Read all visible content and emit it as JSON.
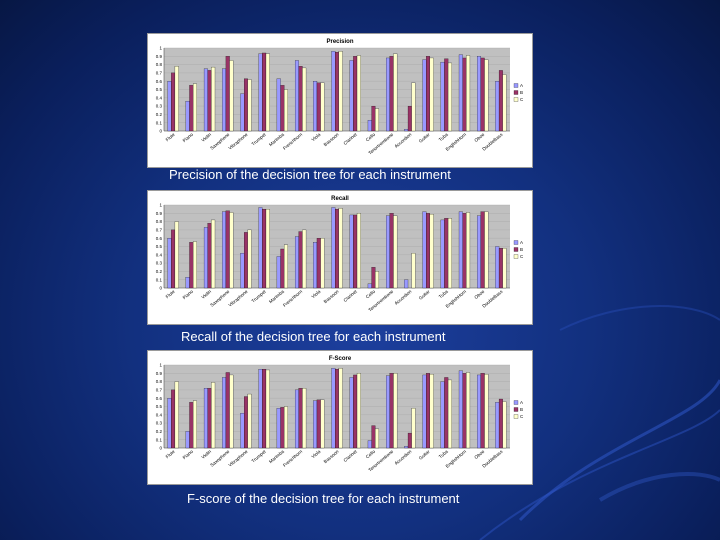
{
  "colors": {
    "A": "#9999ff",
    "B": "#993366",
    "C": "#ffffcc"
  },
  "captions": [
    "Precision of the decision tree for each instrument",
    "Recall of the decision tree for each instrument",
    "F-score of the decision tree for each instrument"
  ],
  "chart_data": [
    {
      "type": "bar",
      "title": "Precision",
      "categories": [
        "Flute",
        "Piano",
        "Violin",
        "Saxophone",
        "Vibraphone",
        "Trumpet",
        "Marimba",
        "Frenchhorn",
        "Viola",
        "Bassoon",
        "Clarinet",
        "Cello",
        "Tenortrombone",
        "Accordion",
        "Guitar",
        "Tuba",
        "EnglishHorn",
        "Oboe",
        "DoubleBass"
      ],
      "series": [
        {
          "name": "A",
          "values": [
            0.6,
            0.36,
            0.75,
            0.75,
            0.45,
            0.93,
            0.63,
            0.85,
            0.6,
            0.96,
            0.85,
            0.13,
            0.88,
            0.02,
            0.86,
            0.83,
            0.92,
            0.9,
            0.6
          ]
        },
        {
          "name": "B",
          "values": [
            0.7,
            0.55,
            0.73,
            0.9,
            0.63,
            0.94,
            0.55,
            0.78,
            0.58,
            0.95,
            0.9,
            0.3,
            0.9,
            0.3,
            0.9,
            0.87,
            0.88,
            0.88,
            0.73
          ]
        },
        {
          "name": "C",
          "values": [
            0.78,
            0.57,
            0.77,
            0.85,
            0.62,
            0.93,
            0.5,
            0.76,
            0.58,
            0.96,
            0.91,
            0.27,
            0.93,
            0.58,
            0.88,
            0.82,
            0.91,
            0.86,
            0.68
          ]
        }
      ],
      "yticks": [
        "0",
        "0.1",
        "0.2",
        "0.3",
        "0.4",
        "0.5",
        "0.6",
        "0.7",
        "0.8",
        "0.9",
        "1"
      ],
      "ylim": [
        0,
        1
      ],
      "legend": [
        "A",
        "B",
        "C"
      ],
      "legend_position": "right"
    },
    {
      "type": "bar",
      "title": "Recall",
      "categories": [
        "Flute",
        "Piano",
        "Violin",
        "Saxophone",
        "Vibraphone",
        "Trumpet",
        "Marimba",
        "Frenchhorn",
        "Viola",
        "Bassoon",
        "Clarinet",
        "Cello",
        "Tenortrombone",
        "Accordion",
        "Guitar",
        "Tuba",
        "EnglishHorn",
        "Oboe",
        "DoubleBass"
      ],
      "series": [
        {
          "name": "A",
          "values": [
            0.6,
            0.13,
            0.73,
            0.92,
            0.42,
            0.97,
            0.38,
            0.62,
            0.55,
            0.97,
            0.88,
            0.05,
            0.87,
            0.1,
            0.92,
            0.82,
            0.92,
            0.87,
            0.5
          ]
        },
        {
          "name": "B",
          "values": [
            0.7,
            0.55,
            0.78,
            0.93,
            0.67,
            0.95,
            0.47,
            0.68,
            0.6,
            0.95,
            0.88,
            0.25,
            0.9,
            0.0,
            0.9,
            0.84,
            0.9,
            0.92,
            0.48
          ]
        },
        {
          "name": "C",
          "values": [
            0.8,
            0.56,
            0.82,
            0.91,
            0.7,
            0.95,
            0.52,
            0.7,
            0.6,
            0.96,
            0.9,
            0.2,
            0.87,
            0.42,
            0.89,
            0.84,
            0.91,
            0.92,
            0.48
          ]
        }
      ],
      "yticks": [
        "0",
        "0.1",
        "0.2",
        "0.3",
        "0.4",
        "0.5",
        "0.6",
        "0.7",
        "0.8",
        "0.9",
        "1"
      ],
      "ylim": [
        0,
        1
      ],
      "legend": [
        "A",
        "B",
        "C"
      ],
      "legend_position": "right"
    },
    {
      "type": "bar",
      "title": "F-Score",
      "categories": [
        "Flute",
        "Piano",
        "Violin",
        "Saxophone",
        "Vibraphone",
        "Trumpet",
        "Marimba",
        "Frenchhorn",
        "Viola",
        "Bassoon",
        "Clarinet",
        "Cello",
        "Tenortrombone",
        "Accordion",
        "Guitar",
        "Tuba",
        "EnglishHorn",
        "Oboe",
        "DoubleBass"
      ],
      "series": [
        {
          "name": "A",
          "values": [
            0.6,
            0.2,
            0.72,
            0.85,
            0.42,
            0.95,
            0.48,
            0.7,
            0.57,
            0.96,
            0.85,
            0.09,
            0.87,
            0.02,
            0.88,
            0.8,
            0.93,
            0.88,
            0.55
          ]
        },
        {
          "name": "B",
          "values": [
            0.7,
            0.55,
            0.72,
            0.91,
            0.62,
            0.95,
            0.49,
            0.72,
            0.58,
            0.95,
            0.88,
            0.27,
            0.9,
            0.18,
            0.9,
            0.85,
            0.9,
            0.9,
            0.59
          ]
        },
        {
          "name": "C",
          "values": [
            0.8,
            0.57,
            0.79,
            0.88,
            0.65,
            0.94,
            0.5,
            0.72,
            0.58,
            0.96,
            0.9,
            0.23,
            0.9,
            0.48,
            0.89,
            0.82,
            0.91,
            0.89,
            0.56
          ]
        }
      ],
      "yticks": [
        "0",
        "0.1",
        "0.2",
        "0.3",
        "0.4",
        "0.5",
        "0.6",
        "0.7",
        "0.8",
        "0.9",
        "1"
      ],
      "ylim": [
        0,
        1
      ],
      "legend": [
        "A",
        "B",
        "C"
      ],
      "legend_position": "right"
    }
  ]
}
